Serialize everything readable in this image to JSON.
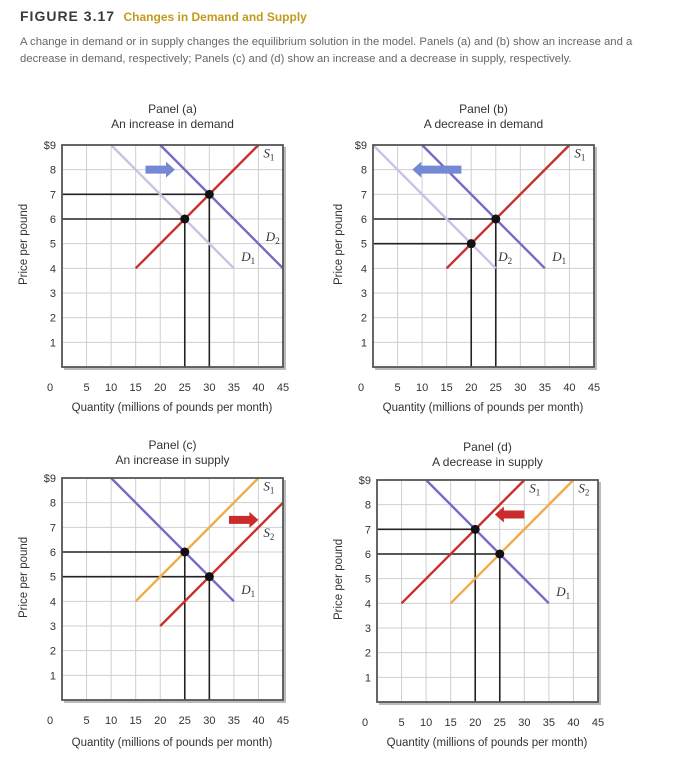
{
  "figure": {
    "number": "FIGURE 3.17",
    "title": "Changes in Demand and Supply",
    "caption": "A change in demand or in supply changes the equilibrium solution in the model. Panels (a) and (b) show an increase and a decrease in demand, respectively; Panels (c) and (d) show an increase and a decrease in supply, respectively."
  },
  "colors": {
    "supply_red": "#c9302c",
    "supply_orange": "#f0ab4a",
    "demand_purple": "#7a68c6",
    "demand_light": "#c9c2e3",
    "arrow_blue": "#7488d4",
    "arrow_red": "#cc2b2b",
    "grid": "#cfcfcf"
  },
  "chart_data": [
    {
      "type": "line",
      "panel": "Panel (a)",
      "title": "An increase in demand",
      "xlabel": "Quantity (millions of pounds per month)",
      "ylabel": "Price per pound",
      "xlim": [
        0,
        45
      ],
      "ylim": [
        0,
        9
      ],
      "grid": true,
      "origin_label": "0",
      "xticks": [
        "5",
        "10",
        "15",
        "20",
        "25",
        "30",
        "35",
        "40",
        "45"
      ],
      "yticks": [
        "$9",
        "8",
        "7",
        "6",
        "5",
        "4",
        "3",
        "2",
        "1"
      ],
      "series": [
        {
          "name": "S",
          "sub": "1",
          "points": [
            [
              15,
              4
            ],
            [
              40,
              9
            ]
          ],
          "color": "#c9302c"
        },
        {
          "name": "D",
          "sub": "1",
          "points": [
            [
              10,
              9
            ],
            [
              35,
              4
            ]
          ],
          "color": "#c9c2e3"
        },
        {
          "name": "D",
          "sub": "2",
          "points": [
            [
              20,
              9
            ],
            [
              45,
              4
            ]
          ],
          "color": "#7a68c6"
        }
      ],
      "equilibria": [
        [
          25,
          6
        ],
        [
          30,
          7
        ]
      ],
      "shift_arrow": {
        "direction": "right",
        "color": "#7488d4"
      }
    },
    {
      "type": "line",
      "panel": "Panel (b)",
      "title": "A decrease in demand",
      "xlabel": "Quantity (millions of pounds per month)",
      "ylabel": "Price per pound",
      "xlim": [
        0,
        45
      ],
      "ylim": [
        0,
        9
      ],
      "grid": true,
      "origin_label": "0",
      "xticks": [
        "5",
        "10",
        "15",
        "20",
        "25",
        "30",
        "35",
        "40",
        "45"
      ],
      "yticks": [
        "$9",
        "8",
        "7",
        "6",
        "5",
        "4",
        "3",
        "2",
        "1"
      ],
      "series": [
        {
          "name": "S",
          "sub": "1",
          "points": [
            [
              15,
              4
            ],
            [
              40,
              9
            ]
          ],
          "color": "#c9302c"
        },
        {
          "name": "D",
          "sub": "2",
          "points": [
            [
              0,
              9
            ],
            [
              25,
              4
            ]
          ],
          "color": "#c9c2e3"
        },
        {
          "name": "D",
          "sub": "1",
          "points": [
            [
              10,
              9
            ],
            [
              35,
              4
            ]
          ],
          "color": "#7a68c6"
        }
      ],
      "equilibria": [
        [
          25,
          6
        ],
        [
          20,
          5
        ]
      ],
      "shift_arrow": {
        "direction": "left",
        "color": "#7488d4"
      }
    },
    {
      "type": "line",
      "panel": "Panel (c)",
      "title": "An increase in supply",
      "xlabel": "Quantity (millions of pounds per month)",
      "ylabel": "Price per pound",
      "xlim": [
        0,
        45
      ],
      "ylim": [
        0,
        9
      ],
      "grid": true,
      "origin_label": "0",
      "xticks": [
        "5",
        "10",
        "15",
        "20",
        "25",
        "30",
        "35",
        "40",
        "45"
      ],
      "yticks": [
        "$9",
        "8",
        "7",
        "6",
        "5",
        "4",
        "3",
        "2",
        "1"
      ],
      "series": [
        {
          "name": "S",
          "sub": "1",
          "points": [
            [
              15,
              4
            ],
            [
              40,
              9
            ]
          ],
          "color": "#f0ab4a"
        },
        {
          "name": "S",
          "sub": "2",
          "points": [
            [
              20,
              3
            ],
            [
              45,
              8
            ]
          ],
          "color": "#c9302c"
        },
        {
          "name": "D",
          "sub": "1",
          "points": [
            [
              10,
              9
            ],
            [
              35,
              4
            ]
          ],
          "color": "#7a68c6"
        }
      ],
      "equilibria": [
        [
          25,
          6
        ],
        [
          30,
          5
        ]
      ],
      "shift_arrow": {
        "direction": "right",
        "color": "#cc2b2b"
      }
    },
    {
      "type": "line",
      "panel": "Panel (d)",
      "title": "A decrease in supply",
      "xlabel": "Quantity (millions of pounds per month)",
      "ylabel": "Price per pound",
      "xlim": [
        0,
        45
      ],
      "ylim": [
        0,
        9
      ],
      "grid": true,
      "origin_label": "0",
      "xticks": [
        "5",
        "10",
        "15",
        "20",
        "25",
        "30",
        "35",
        "40",
        "45"
      ],
      "yticks": [
        "$9",
        "8",
        "7",
        "6",
        "5",
        "4",
        "3",
        "2",
        "1"
      ],
      "series": [
        {
          "name": "S",
          "sub": "1",
          "points": [
            [
              15,
              4
            ],
            [
              40,
              9
            ]
          ],
          "color": "#f0ab4a"
        },
        {
          "name": "S",
          "sub": "2",
          "points": [
            [
              5,
              4
            ],
            [
              30,
              9
            ]
          ],
          "color": "#c9302c"
        },
        {
          "name": "D",
          "sub": "1",
          "points": [
            [
              10,
              9
            ],
            [
              35,
              4
            ]
          ],
          "color": "#7a68c6"
        }
      ],
      "equilibria": [
        [
          20,
          7
        ],
        [
          25,
          6
        ]
      ],
      "shift_arrow": {
        "direction": "left",
        "color": "#cc2b2b"
      }
    }
  ]
}
